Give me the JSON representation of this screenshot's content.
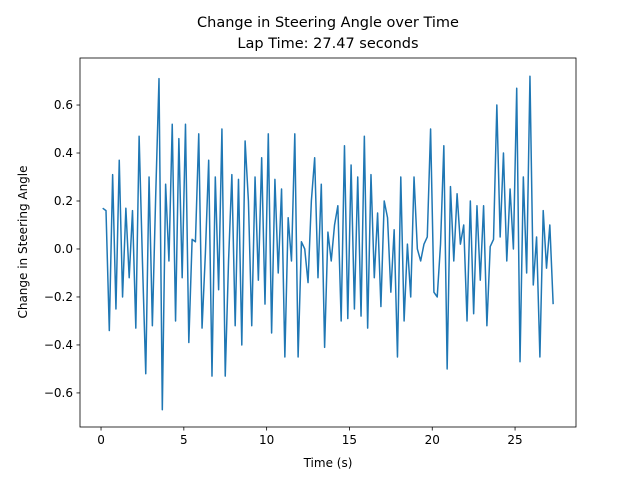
{
  "chart_data": {
    "type": "line",
    "title": "Change in Steering Angle over Time",
    "subtitle": "Lap Time: 27.47 seconds",
    "x_label": "Time (s)",
    "y_label": "Change in Steering Angle",
    "color": "#1f77b4",
    "x": [
      0.1,
      0.3,
      0.5,
      0.7,
      0.9,
      1.1,
      1.3,
      1.5,
      1.7,
      1.9,
      2.1,
      2.3,
      2.5,
      2.7,
      2.9,
      3.1,
      3.3,
      3.5,
      3.7,
      3.9,
      4.1,
      4.3,
      4.5,
      4.7,
      4.9,
      5.1,
      5.3,
      5.5,
      5.7,
      5.9,
      6.1,
      6.3,
      6.5,
      6.7,
      6.9,
      7.1,
      7.3,
      7.5,
      7.7,
      7.9,
      8.1,
      8.3,
      8.5,
      8.7,
      8.9,
      9.1,
      9.3,
      9.5,
      9.7,
      9.9,
      10.1,
      10.3,
      10.5,
      10.7,
      10.9,
      11.1,
      11.3,
      11.5,
      11.7,
      11.9,
      12.1,
      12.3,
      12.5,
      12.7,
      12.9,
      13.1,
      13.3,
      13.5,
      13.7,
      13.9,
      14.1,
      14.3,
      14.5,
      14.7,
      14.9,
      15.1,
      15.3,
      15.5,
      15.7,
      15.9,
      16.1,
      16.3,
      16.5,
      16.7,
      16.9,
      17.1,
      17.3,
      17.5,
      17.7,
      17.9,
      18.1,
      18.3,
      18.5,
      18.7,
      18.9,
      19.1,
      19.3,
      19.5,
      19.7,
      19.9,
      20.1,
      20.3,
      20.5,
      20.7,
      20.9,
      21.1,
      21.3,
      21.5,
      21.7,
      21.9,
      22.1,
      22.3,
      22.5,
      22.7,
      22.9,
      23.1,
      23.3,
      23.5,
      23.7,
      23.9,
      24.1,
      24.3,
      24.5,
      24.7,
      24.9,
      25.1,
      25.3,
      25.5,
      25.7,
      25.9,
      26.1,
      26.3,
      26.5,
      26.7,
      26.9,
      27.1,
      27.3
    ],
    "values": [
      0.17,
      0.16,
      -0.34,
      0.31,
      -0.25,
      0.37,
      -0.2,
      0.17,
      -0.12,
      0.16,
      -0.33,
      0.47,
      -0.05,
      -0.52,
      0.3,
      -0.32,
      0.22,
      0.71,
      -0.67,
      0.27,
      -0.05,
      0.52,
      -0.3,
      0.46,
      -0.12,
      0.52,
      -0.39,
      0.04,
      0.03,
      0.48,
      -0.33,
      -0.02,
      0.37,
      -0.53,
      0.3,
      -0.17,
      0.5,
      -0.53,
      -0.05,
      0.31,
      -0.32,
      0.29,
      -0.4,
      0.45,
      0.2,
      -0.32,
      0.3,
      -0.13,
      0.38,
      -0.23,
      0.48,
      -0.35,
      0.29,
      -0.1,
      0.25,
      -0.45,
      0.13,
      -0.05,
      0.48,
      -0.45,
      0.03,
      0.0,
      -0.14,
      0.2,
      0.38,
      -0.12,
      0.27,
      -0.41,
      0.07,
      -0.05,
      0.1,
      0.18,
      -0.3,
      0.43,
      -0.29,
      0.35,
      -0.25,
      0.3,
      -0.28,
      0.47,
      -0.33,
      0.31,
      -0.12,
      0.15,
      -0.24,
      0.2,
      0.13,
      -0.18,
      0.08,
      -0.45,
      0.3,
      -0.3,
      0.02,
      -0.2,
      0.3,
      0.0,
      -0.05,
      0.02,
      0.05,
      0.5,
      -0.18,
      -0.2,
      0.02,
      0.43,
      -0.5,
      0.26,
      -0.05,
      0.23,
      0.02,
      0.1,
      -0.3,
      0.2,
      -0.27,
      0.18,
      -0.13,
      0.18,
      -0.32,
      0.01,
      0.04,
      0.6,
      0.05,
      0.4,
      -0.05,
      0.25,
      0.0,
      0.67,
      -0.47,
      0.3,
      -0.1,
      0.72,
      -0.15,
      0.05,
      -0.45,
      0.16,
      -0.08,
      0.1,
      -0.23
    ],
    "xlim": [
      -1.27,
      28.68
    ],
    "ylim": [
      -0.742,
      0.796
    ],
    "xticks": [
      0,
      5,
      10,
      15,
      20,
      25
    ],
    "yticks": [
      {
        "value": -0.6,
        "label": "−0.6"
      },
      {
        "value": -0.4,
        "label": "−0.4"
      },
      {
        "value": -0.2,
        "label": "−0.2"
      },
      {
        "value": 0,
        "label": "0.0"
      },
      {
        "value": 0.2,
        "label": "0.2"
      },
      {
        "value": 0.4,
        "label": "0.4"
      },
      {
        "value": 0.6,
        "label": "0.6"
      }
    ],
    "grid": false
  }
}
